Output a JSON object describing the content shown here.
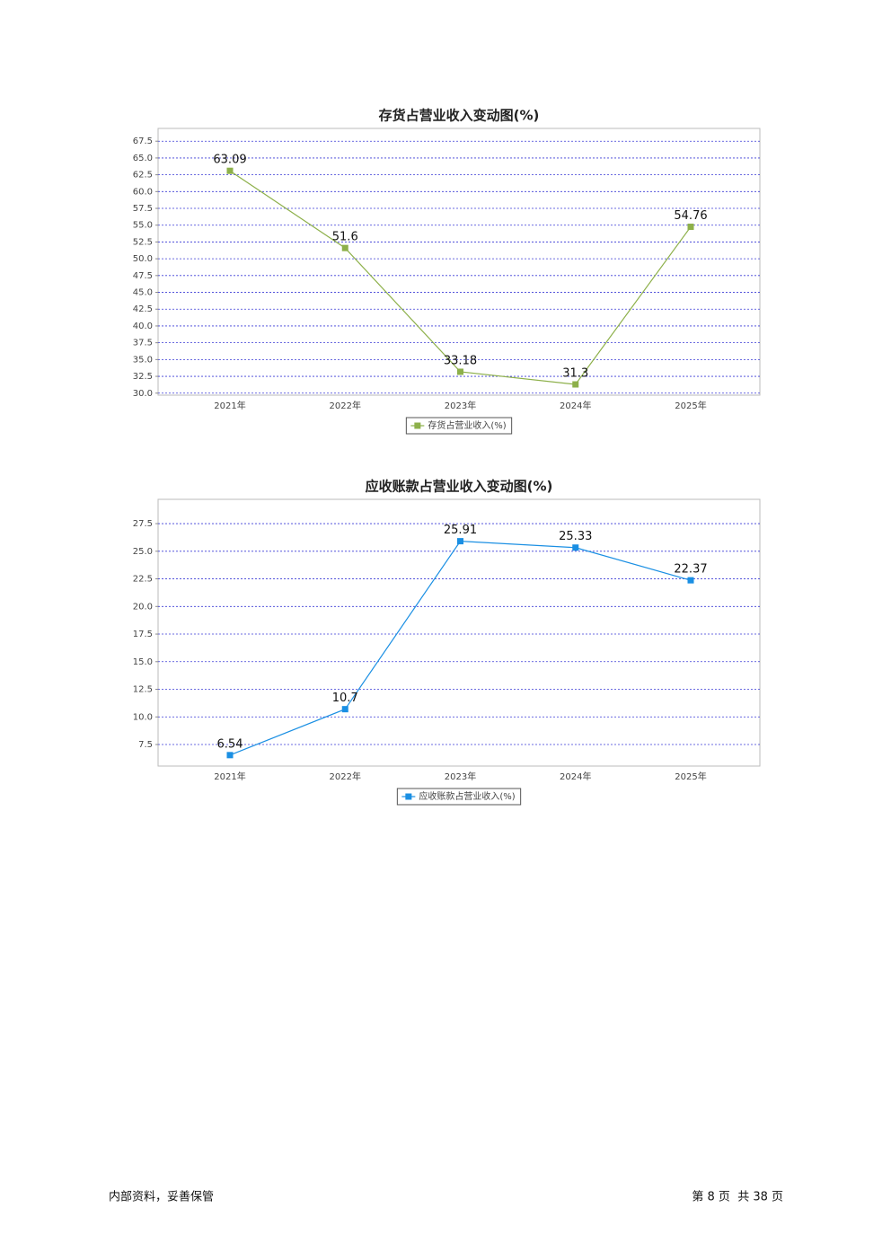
{
  "chart_data": [
    {
      "type": "line",
      "title": "存货占营业收入变动图(%)",
      "categories": [
        "2021年",
        "2022年",
        "2023年",
        "2024年",
        "2025年"
      ],
      "series": [
        {
          "name": "存货占营业收入(%)",
          "color": "#8db04a",
          "values": [
            63.09,
            51.6,
            33.18,
            31.3,
            54.76
          ]
        }
      ],
      "ylim": [
        29.7,
        69.4
      ],
      "yticks": [
        {
          "value": 30,
          "label": "30.0"
        },
        {
          "value": 32.5,
          "label": "32.5"
        },
        {
          "value": 35,
          "label": "35.0"
        },
        {
          "value": 37.5,
          "label": "37.5"
        },
        {
          "value": 40,
          "label": "40.0"
        },
        {
          "value": 42.5,
          "label": "42.5"
        },
        {
          "value": 45,
          "label": "45.0"
        },
        {
          "value": 47.5,
          "label": "47.5"
        },
        {
          "value": 50,
          "label": "50.0"
        },
        {
          "value": 52.5,
          "label": "52.5"
        },
        {
          "value": 55,
          "label": "55.0"
        },
        {
          "value": 57.5,
          "label": "57.5"
        },
        {
          "value": 60,
          "label": "60.0"
        },
        {
          "value": 62.5,
          "label": "62.5"
        },
        {
          "value": 65,
          "label": "65.0"
        },
        {
          "value": 67.5,
          "label": "67.5"
        }
      ],
      "grid": true
    },
    {
      "type": "line",
      "title": "应收账款占营业收入变动图(%)",
      "categories": [
        "2021年",
        "2022年",
        "2023年",
        "2024年",
        "2025年"
      ],
      "series": [
        {
          "name": "应收账款占营业收入(%)",
          "color": "#1a8fe3",
          "values": [
            6.54,
            10.7,
            25.91,
            25.33,
            22.37
          ]
        }
      ],
      "ylim": [
        5.55,
        29.7
      ],
      "yticks": [
        7.5,
        {
          "value": 10,
          "label": "10.0"
        },
        12.5,
        {
          "value": 15,
          "label": "15.0"
        },
        17.5,
        {
          "value": 20,
          "label": "20.0"
        },
        22.5,
        {
          "value": 25,
          "label": "25.0"
        },
        27.5
      ],
      "grid": true
    }
  ],
  "footer": {
    "left": "内部资料，妥善保管",
    "right": "第 8 页  共 38 页"
  }
}
